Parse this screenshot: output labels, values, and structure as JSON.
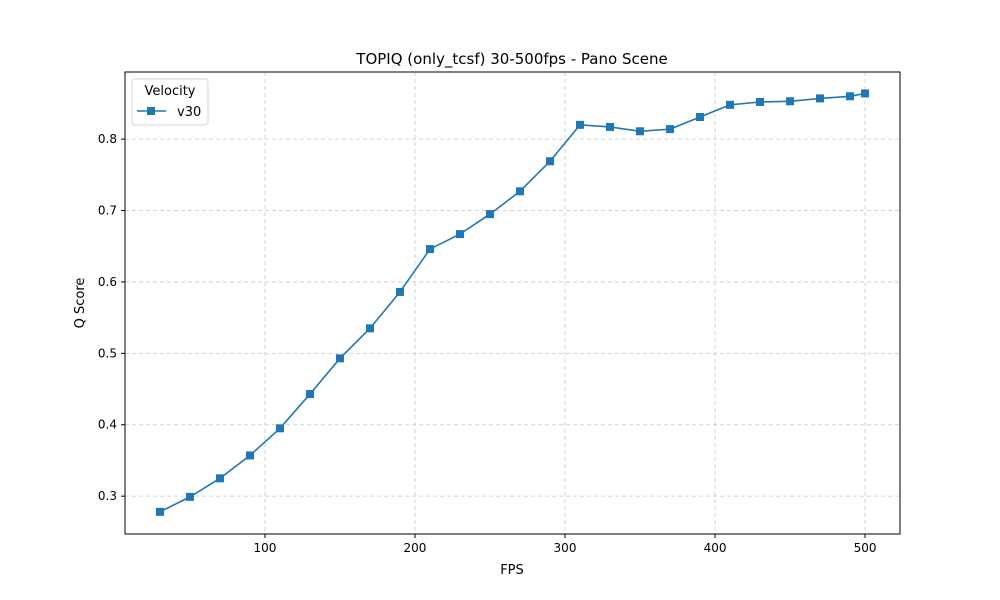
{
  "chart_data": {
    "type": "line",
    "title": "TOPIQ (only_tcsf) 30-500fps - Pano Scene",
    "xlabel": "FPS",
    "ylabel": "Q Score",
    "xlim": [
      6.7,
      523.3
    ],
    "ylim": [
      0.247,
      0.894
    ],
    "xticks": [
      100,
      200,
      300,
      400,
      500
    ],
    "yticks": [
      0.3,
      0.4,
      0.5,
      0.6,
      0.7,
      0.8
    ],
    "ytick_labels": [
      "0.3",
      "0.4",
      "0.5",
      "0.6",
      "0.7",
      "0.8"
    ],
    "grid": true,
    "legend": {
      "title": "Velocity",
      "placement": "top-left"
    },
    "colors": {
      "series": "#1f77b4",
      "grid": "#c8c8c8"
    },
    "x": [
      30,
      50,
      70,
      90,
      110,
      130,
      150,
      170,
      190,
      210,
      230,
      250,
      270,
      290,
      310,
      330,
      350,
      370,
      390,
      410,
      430,
      450,
      470,
      490,
      500
    ],
    "series": [
      {
        "name": "v30",
        "marker": "square",
        "values": [
          0.278,
          0.299,
          0.325,
          0.357,
          0.395,
          0.443,
          0.493,
          0.535,
          0.586,
          0.646,
          0.667,
          0.695,
          0.727,
          0.769,
          0.82,
          0.817,
          0.811,
          0.814,
          0.831,
          0.848,
          0.852,
          0.853,
          0.857,
          0.86,
          0.864
        ]
      }
    ]
  }
}
